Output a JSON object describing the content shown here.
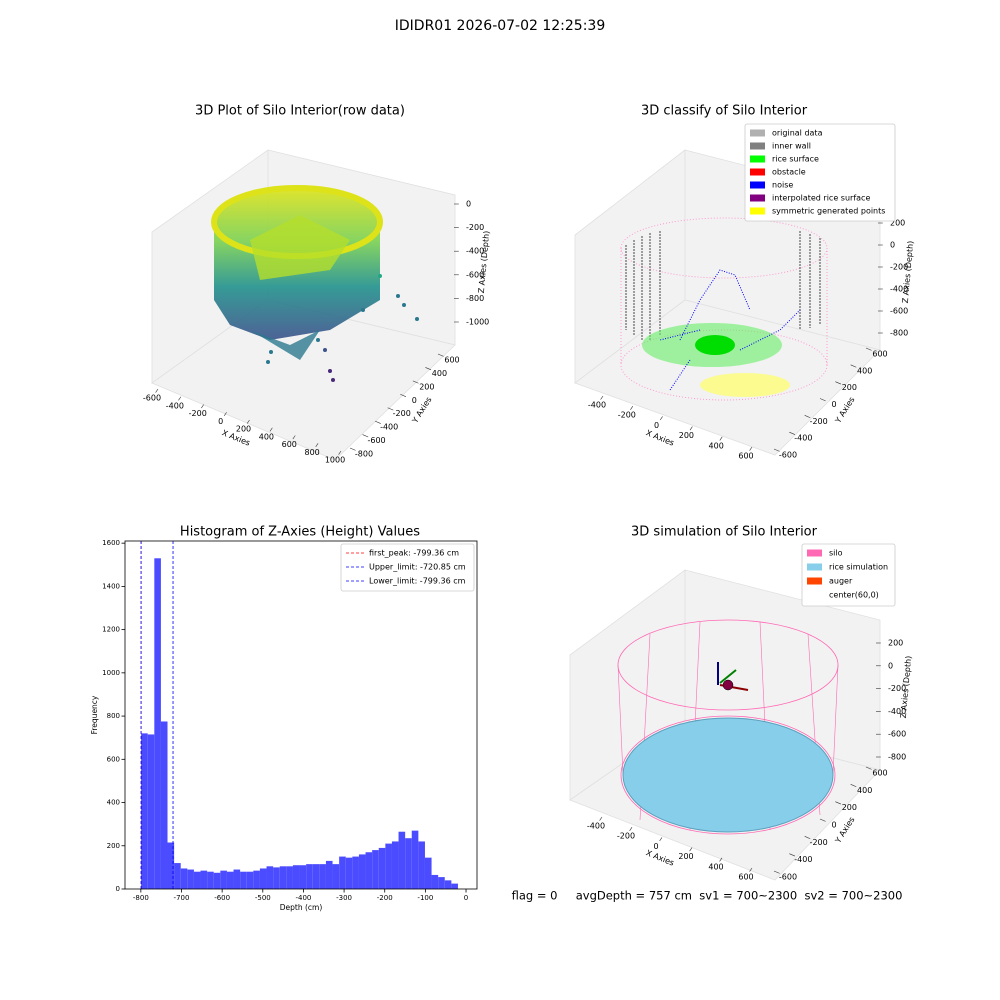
{
  "title": "IDIDR01 2026-07-02 12:25:39",
  "footer": "flag = 0     avgDepth = 757 cm  sv1 = 700~2300  sv2 = 700~2300",
  "chart_data": [
    {
      "type": "scatter3d",
      "title": "3D Plot of Silo Interior(row data)",
      "xlabel": "X Axies",
      "ylabel": "Y Axies",
      "zlabel": "Z Axies (Depth)",
      "xticks": [
        -600,
        -400,
        -200,
        0,
        200,
        400,
        600,
        800,
        1000
      ],
      "yticks": [
        -800,
        -600,
        -400,
        -200,
        0,
        200,
        400,
        600
      ],
      "zticks": [
        -1000,
        -800,
        -600,
        -400,
        -200,
        0
      ]
    },
    {
      "type": "scatter3d",
      "title": "3D classify of Silo Interior",
      "xlabel": "X Axies",
      "ylabel": "Y Axies",
      "zlabel": "Z Axies (Depth)",
      "xticks": [
        -400,
        -200,
        0,
        200,
        400,
        600
      ],
      "yticks": [
        -600,
        -400,
        -200,
        0,
        200,
        400,
        600
      ],
      "zticks": [
        -800,
        -600,
        -400,
        -200,
        0,
        200
      ],
      "legend_loc": "upper right",
      "legend": [
        {
          "name": "original data",
          "color": "#b0b0b0"
        },
        {
          "name": "inner wall",
          "color": "#808080"
        },
        {
          "name": "rice surface",
          "color": "#00ff00"
        },
        {
          "name": "obstacle",
          "color": "#ff0000"
        },
        {
          "name": "noise",
          "color": "#0000ff"
        },
        {
          "name": "interpolated rice surface",
          "color": "#800080"
        },
        {
          "name": "symmetric generated points",
          "color": "#ffff00"
        }
      ]
    },
    {
      "type": "hist",
      "title": "Histogram of Z-Axies (Height) Values",
      "xlabel": "Depth (cm)",
      "ylabel": "Frequency",
      "color": "#4b4bff",
      "bins": [
        -799.36,
        -783.12,
        -766.88,
        -750.64,
        -734.4,
        -718.16,
        -701.92,
        -685.68,
        -669.44,
        -653.2,
        -636.96,
        -620.72,
        -604.48,
        -588.24,
        -572,
        -555.76,
        -539.52,
        -523.28,
        -507.04,
        -490.8,
        -474.56,
        -458.32,
        -442.08,
        -425.84,
        -409.6,
        -393.36,
        -377.12,
        -360.88,
        -344.64,
        -328.4,
        -312.16,
        -295.92,
        -279.68,
        -263.44,
        -247.2,
        -230.96,
        -214.72,
        -198.48,
        -182.24,
        -166,
        -149.76,
        -133.52,
        -117.28,
        -101.04,
        -84.8,
        -68.56,
        -52.32,
        -36.08,
        -19.84
      ],
      "counts": [
        720,
        715,
        1530,
        775,
        215,
        120,
        95,
        90,
        80,
        85,
        80,
        75,
        85,
        80,
        90,
        80,
        80,
        85,
        95,
        105,
        100,
        105,
        105,
        110,
        110,
        115,
        115,
        115,
        130,
        115,
        150,
        145,
        150,
        160,
        170,
        180,
        190,
        210,
        220,
        265,
        235,
        270,
        220,
        145,
        65,
        55,
        40,
        25
      ],
      "lines": [
        {
          "name": "first_peak: -799.36 cm",
          "value": -799.36,
          "color": "#ff0000"
        },
        {
          "name": "Upper_limit: -720.85 cm",
          "value": -720.85,
          "color": "#0000ff"
        },
        {
          "name": "Lower_limit: -799.36 cm",
          "value": -799.36,
          "color": "#0000ff"
        }
      ],
      "legend_loc": "upper right",
      "xlim": [
        -839,
        27
      ],
      "ylim": [
        0,
        1610
      ],
      "xticks": [
        -800,
        -700,
        -600,
        -500,
        -400,
        -300,
        -200,
        -100,
        0
      ],
      "yticks": [
        0,
        200,
        400,
        600,
        800,
        1000,
        1200,
        1400,
        1600
      ]
    },
    {
      "type": "surface3d",
      "title": "3D simulation of Silo Interior",
      "xlabel": "X Axies",
      "ylabel": "Y Axies",
      "zlabel": "Z Axies (Depth)",
      "xticks": [
        -400,
        -200,
        0,
        200,
        400,
        600
      ],
      "yticks": [
        -600,
        -400,
        -200,
        0,
        200,
        400,
        600
      ],
      "zticks": [
        -800,
        -600,
        -400,
        -200,
        0,
        200
      ],
      "legend_loc": "upper right",
      "legend": [
        {
          "name": "silo",
          "color": "#ff69b4"
        },
        {
          "name": "rice simulation",
          "color": "#87ceeb"
        },
        {
          "name": "auger",
          "color": "#ff4500"
        },
        {
          "name": "center(60,0)",
          "color": "#ffffff"
        }
      ]
    }
  ]
}
